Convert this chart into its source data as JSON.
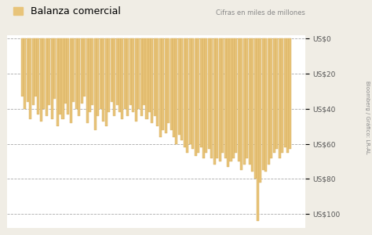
{
  "title": "Balanza comercial",
  "subtitle": "Cifras en miles de millones",
  "bar_color": "#E8C47A",
  "bar_edge_color": "#D4AA55",
  "background_color": "#FFFFFF",
  "outer_background": "#F0EDE5",
  "yticks": [
    0,
    20,
    40,
    60,
    80,
    100
  ],
  "ytick_labels": [
    "US$0",
    "US$20",
    "US$40",
    "US$60",
    "US$80",
    "US$100"
  ],
  "source_text": "Bloomberg / Gráfico: LR-AL",
  "values": [
    33,
    40,
    36,
    46,
    38,
    33,
    43,
    47,
    40,
    44,
    38,
    46,
    34,
    50,
    43,
    46,
    37,
    43,
    48,
    36,
    40,
    44,
    37,
    33,
    48,
    42,
    38,
    52,
    44,
    40,
    47,
    50,
    42,
    36,
    44,
    38,
    42,
    46,
    40,
    44,
    38,
    42,
    47,
    40,
    44,
    38,
    46,
    42,
    48,
    44,
    50,
    56,
    52,
    54,
    48,
    52,
    56,
    60,
    55,
    58,
    62,
    65,
    60,
    63,
    67,
    65,
    62,
    68,
    65,
    63,
    68,
    72,
    68,
    70,
    65,
    68,
    73,
    70,
    68,
    65,
    70,
    75,
    72,
    68,
    72,
    76,
    80,
    104,
    82,
    75,
    76,
    72,
    68,
    65,
    63,
    68,
    65,
    62,
    65,
    63
  ]
}
